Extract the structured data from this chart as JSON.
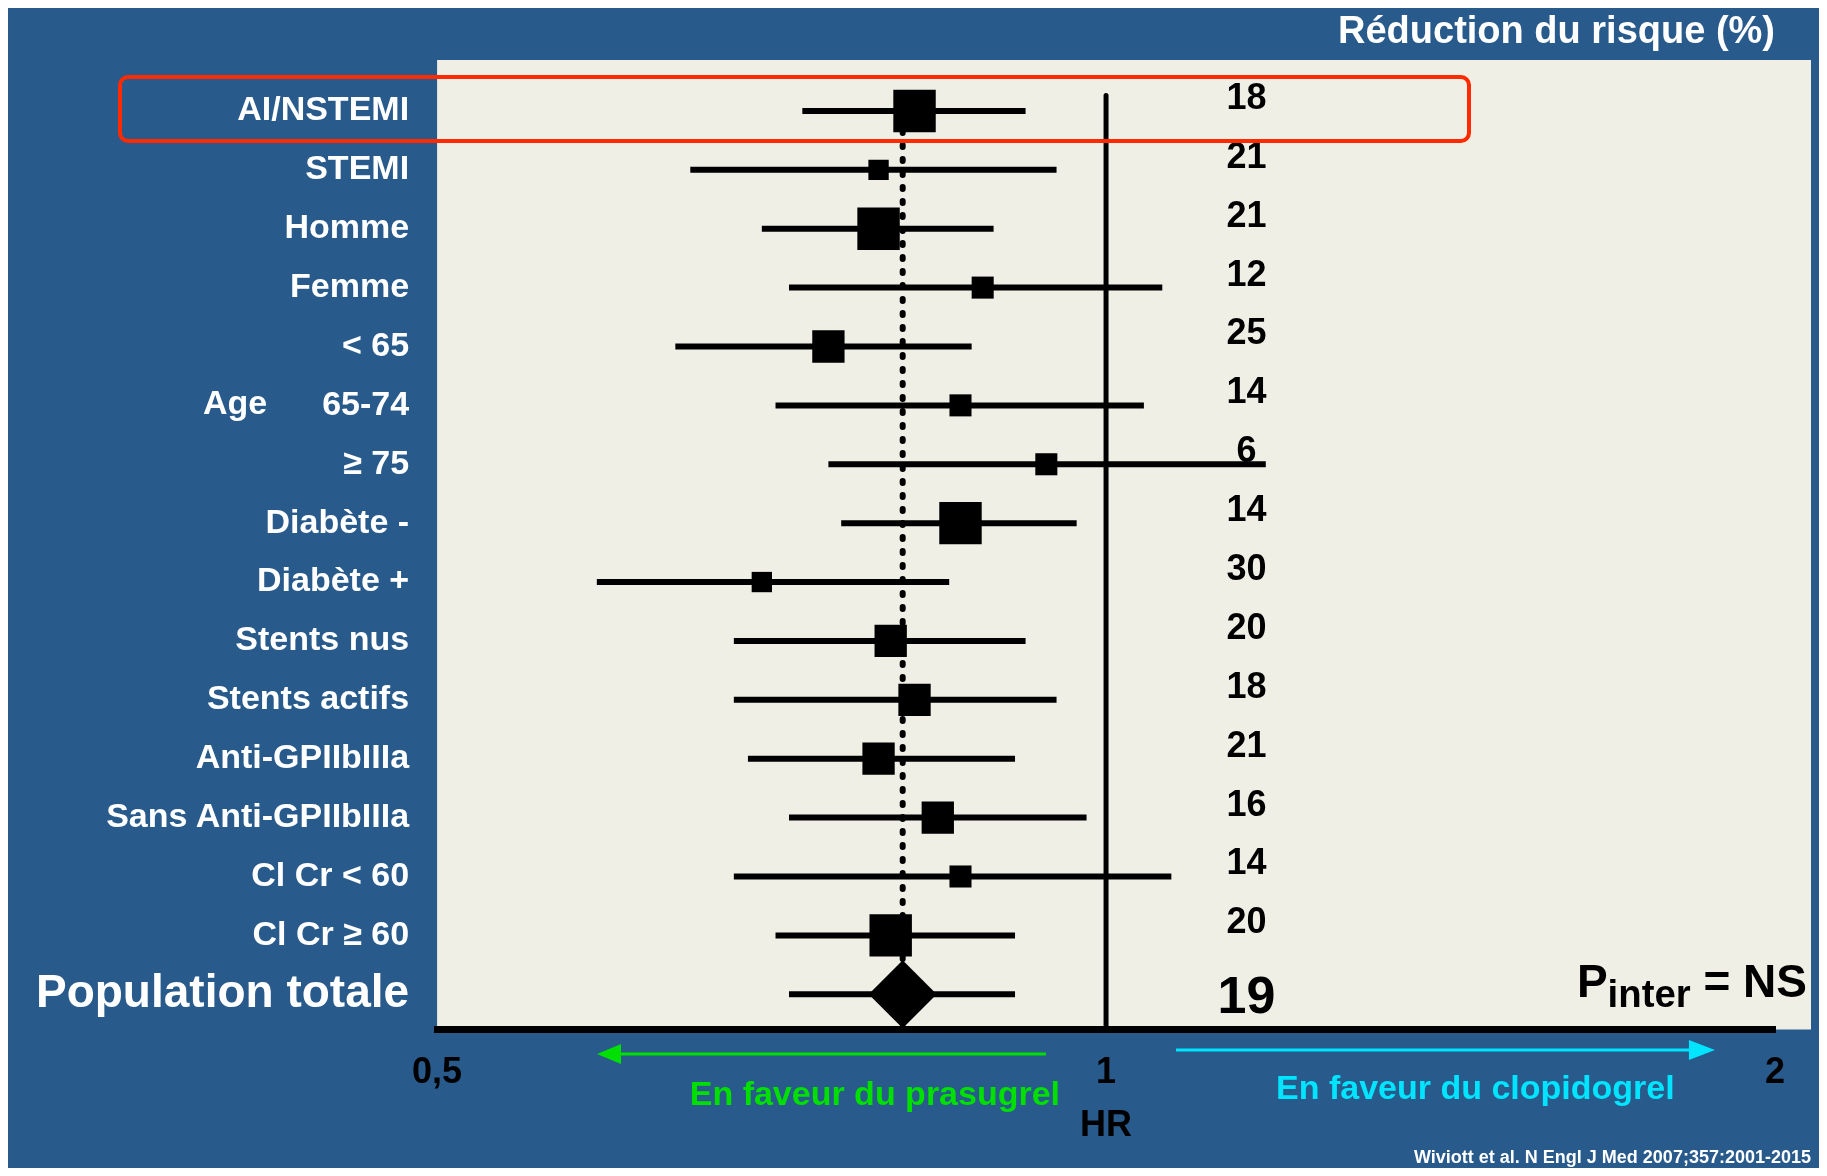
{
  "chart_data": {
    "type": "bubble",
    "orientation": "horizontal",
    "title": "Réduction du risque (%)",
    "xlabel": "HR",
    "categories": [
      "AI/NSTEMI",
      "STEMI",
      "Homme",
      "Femme",
      "< 65",
      "65-74",
      "≥ 75",
      "Diabète -",
      "Diabète +",
      "Stents nus",
      "Stents actifs",
      "Anti-GPIIbIIIa",
      "Sans Anti-GPIIbIIIa",
      "Cl Cr < 60",
      "Cl Cr ≥ 60",
      "Population totale"
    ],
    "series": [
      {
        "color": "#000000",
        "marker": "square",
        "values": [
          0.82,
          0.79,
          0.79,
          0.88,
          0.75,
          0.86,
          0.94,
          0.86,
          0.7,
          0.8,
          0.82,
          0.79,
          0.84,
          0.86,
          0.8,
          null
        ],
        "errors": [
          [
            0.73,
            0.92
          ],
          [
            0.65,
            0.95
          ],
          [
            0.7,
            0.89
          ],
          [
            0.72,
            1.06
          ],
          [
            0.64,
            0.87
          ],
          [
            0.71,
            1.04
          ],
          [
            0.75,
            1.18
          ],
          [
            0.76,
            0.97
          ],
          [
            0.59,
            0.85
          ],
          [
            0.68,
            0.92
          ],
          [
            0.68,
            0.95
          ],
          [
            0.69,
            0.91
          ],
          [
            0.72,
            0.98
          ],
          [
            0.68,
            1.07
          ],
          [
            0.71,
            0.91
          ],
          null
        ],
        "sizes": [
          1,
          0.23,
          1,
          0.27,
          0.58,
          0.27,
          0.27,
          1,
          0.23,
          0.58,
          0.58,
          0.58,
          0.58,
          0.27,
          1,
          null
        ]
      },
      {
        "color": "#000000",
        "marker": "diamond",
        "values": [
          null,
          null,
          null,
          null,
          null,
          null,
          null,
          null,
          null,
          null,
          null,
          null,
          null,
          null,
          null,
          0.81
        ],
        "errors": [
          null,
          null,
          null,
          null,
          null,
          null,
          null,
          null,
          null,
          null,
          null,
          null,
          null,
          null,
          null,
          [
            0.72,
            0.91
          ]
        ]
      }
    ],
    "log": "x",
    "xlim": [
      0.5,
      2
    ],
    "xticks": [
      {
        "value": 0.5,
        "label": "0,5"
      },
      1,
      2
    ],
    "ref_lines": [
      {
        "axis": "x",
        "value": 1,
        "color": "#000000",
        "line_style": "solid"
      },
      {
        "axis": "x",
        "value": 0.81,
        "color": "#000000",
        "line_style": "dotted"
      }
    ],
    "grid": false,
    "legend": false,
    "annotations": [
      "18",
      "21",
      "21",
      "12",
      "25",
      "14",
      "6",
      "14",
      "30",
      "20",
      "18",
      "21",
      "16",
      "14",
      "20",
      "19",
      "Age",
      "En faveur du prasugrel",
      "En faveur du clopidogrel",
      "P$_{inter}$ = NS",
      "Wiviott et al. N Engl J Med 2007;357:2001-2015"
    ]
  }
}
